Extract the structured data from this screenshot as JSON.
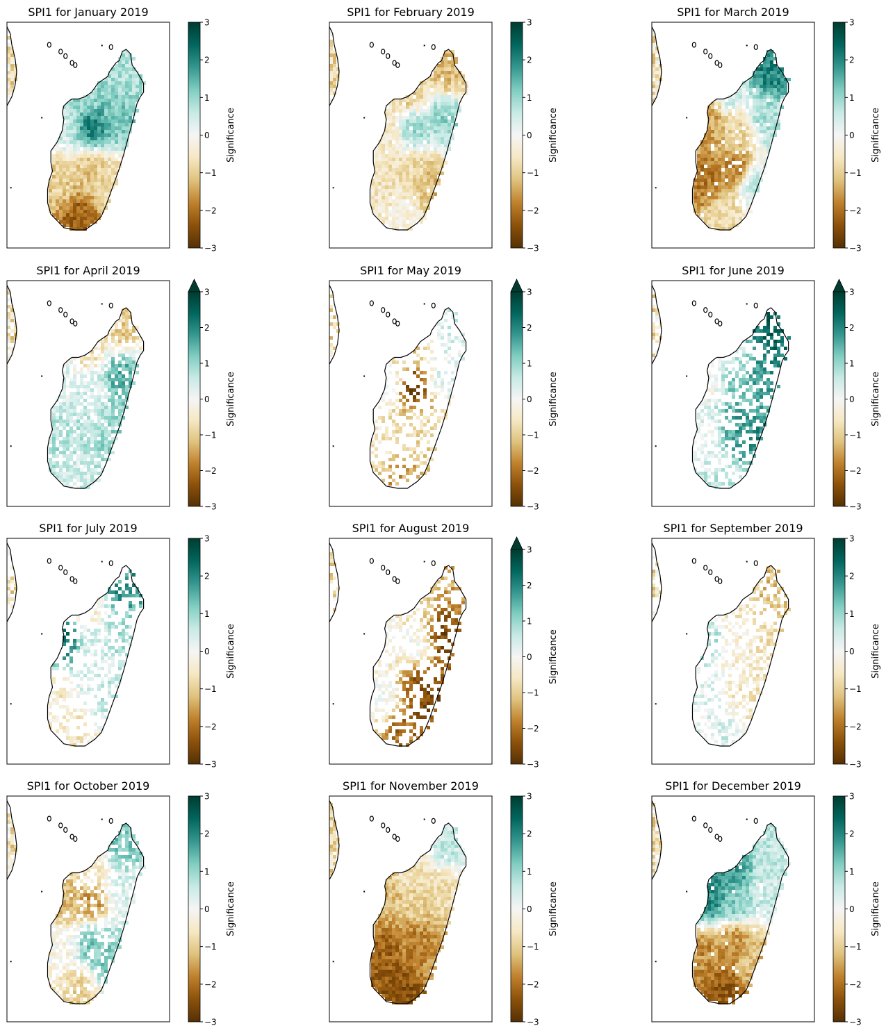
{
  "chart_data": {
    "type": "heatmap",
    "colormap": "BrBG",
    "colormap_stops": [
      "#543005",
      "#8c510a",
      "#bf812d",
      "#dfc27d",
      "#f6e8c3",
      "#f5f5f5",
      "#c7eae5",
      "#80cdc1",
      "#35978f",
      "#01665e",
      "#003c30"
    ],
    "colorbar_label": "Significance",
    "colorbar_range": [
      -3,
      3
    ],
    "colorbar_ticks": [
      "3",
      "2",
      "1",
      "0",
      "−1",
      "−2",
      "−3"
    ],
    "grid": false,
    "panels": [
      {
        "title": "SPI1 for January 2019",
        "extend": false,
        "regions": {
          "north": 0.8,
          "northwest": 1.0,
          "west": 0.5,
          "center": 2.0,
          "east": 1.2,
          "south": -1.1,
          "southwest": -1.0,
          "southeast": -0.8,
          "deepsouth": -2.2
        },
        "coverage": 0.95
      },
      {
        "title": "SPI1 for February 2019",
        "extend": false,
        "regions": {
          "north": -1.2,
          "northwest": -1.0,
          "west": -0.5,
          "center": 0.9,
          "east": 1.0,
          "south": -0.8,
          "southwest": -0.6,
          "southeast": -1.2,
          "deepsouth": -0.3
        },
        "coverage": 0.93
      },
      {
        "title": "SPI1 for March 2019",
        "extend": false,
        "regions": {
          "north": 2.0,
          "northwest": 0.5,
          "west": -1.5,
          "center": -0.9,
          "east": 0.8,
          "south": -1.8,
          "southwest": -1.9,
          "southeast": 0.6,
          "deepsouth": -0.8
        },
        "coverage": 0.9
      },
      {
        "title": "SPI1 for April 2019",
        "extend": true,
        "regions": {
          "north": -1.0,
          "northwest": -0.7,
          "west": 0.3,
          "center": 0.4,
          "east": 1.5,
          "south": 0.7,
          "southwest": 0.8,
          "southeast": 1.0,
          "deepsouth": 0.4
        },
        "coverage": 0.75
      },
      {
        "title": "SPI1 for May 2019",
        "extend": true,
        "regions": {
          "north": 0.4,
          "northwest": -1.0,
          "west": 0.0,
          "center": -2.6,
          "east": 0.3,
          "south": -0.8,
          "southwest": -0.6,
          "southeast": -1.0,
          "deepsouth": -1.5
        },
        "coverage": 0.3
      },
      {
        "title": "SPI1 for June 2019",
        "extend": true,
        "regions": {
          "north": 2.4,
          "northwest": 0.6,
          "west": 0.0,
          "center": 1.3,
          "east": 1.8,
          "south": 1.6,
          "southwest": 0.2,
          "southeast": 1.9,
          "deepsouth": 0.6
        },
        "coverage": 0.45
      },
      {
        "title": "SPI1 for July 2019",
        "extend": false,
        "regions": {
          "north": 1.8,
          "northwest": -0.4,
          "west": 2.2,
          "center": 0.4,
          "east": 0.8,
          "south": 0.3,
          "southwest": -0.5,
          "southeast": 0.7,
          "deepsouth": -0.6
        },
        "coverage": 0.4
      },
      {
        "title": "SPI1 for August 2019",
        "extend": true,
        "regions": {
          "north": -1.5,
          "northwest": -0.6,
          "west": 0.0,
          "center": 0.0,
          "east": -2.5,
          "south": -2.3,
          "southwest": 0.0,
          "southeast": -2.6,
          "deepsouth": -2.0
        },
        "coverage": 0.4
      },
      {
        "title": "SPI1 for September 2019",
        "extend": false,
        "regions": {
          "north": -1.2,
          "northwest": -0.5,
          "west": 0.8,
          "center": -0.3,
          "east": -0.7,
          "south": -0.5,
          "southwest": 0.3,
          "southeast": -0.6,
          "deepsouth": 0.4
        },
        "coverage": 0.4
      },
      {
        "title": "SPI1 for October 2019",
        "extend": false,
        "regions": {
          "north": 1.2,
          "northwest": -0.5,
          "west": -1.2,
          "center": -1.6,
          "east": 0.4,
          "south": 1.2,
          "southwest": -0.2,
          "southeast": 1.3,
          "deepsouth": -1.0
        },
        "coverage": 0.7
      },
      {
        "title": "SPI1 for November 2019",
        "extend": false,
        "regions": {
          "north": 0.6,
          "northwest": -0.6,
          "west": -1.2,
          "center": -0.9,
          "east": -0.7,
          "south": -1.8,
          "southwest": -2.2,
          "southeast": -1.7,
          "deepsouth": -2.4
        },
        "coverage": 0.95
      },
      {
        "title": "SPI1 for December 2019",
        "extend": false,
        "regions": {
          "north": 0.6,
          "northwest": 1.8,
          "west": 1.9,
          "center": 1.2,
          "east": 0.5,
          "south": -1.6,
          "southwest": -1.7,
          "southeast": -1.2,
          "deepsouth": -2.3
        },
        "coverage": 0.92
      }
    ]
  }
}
